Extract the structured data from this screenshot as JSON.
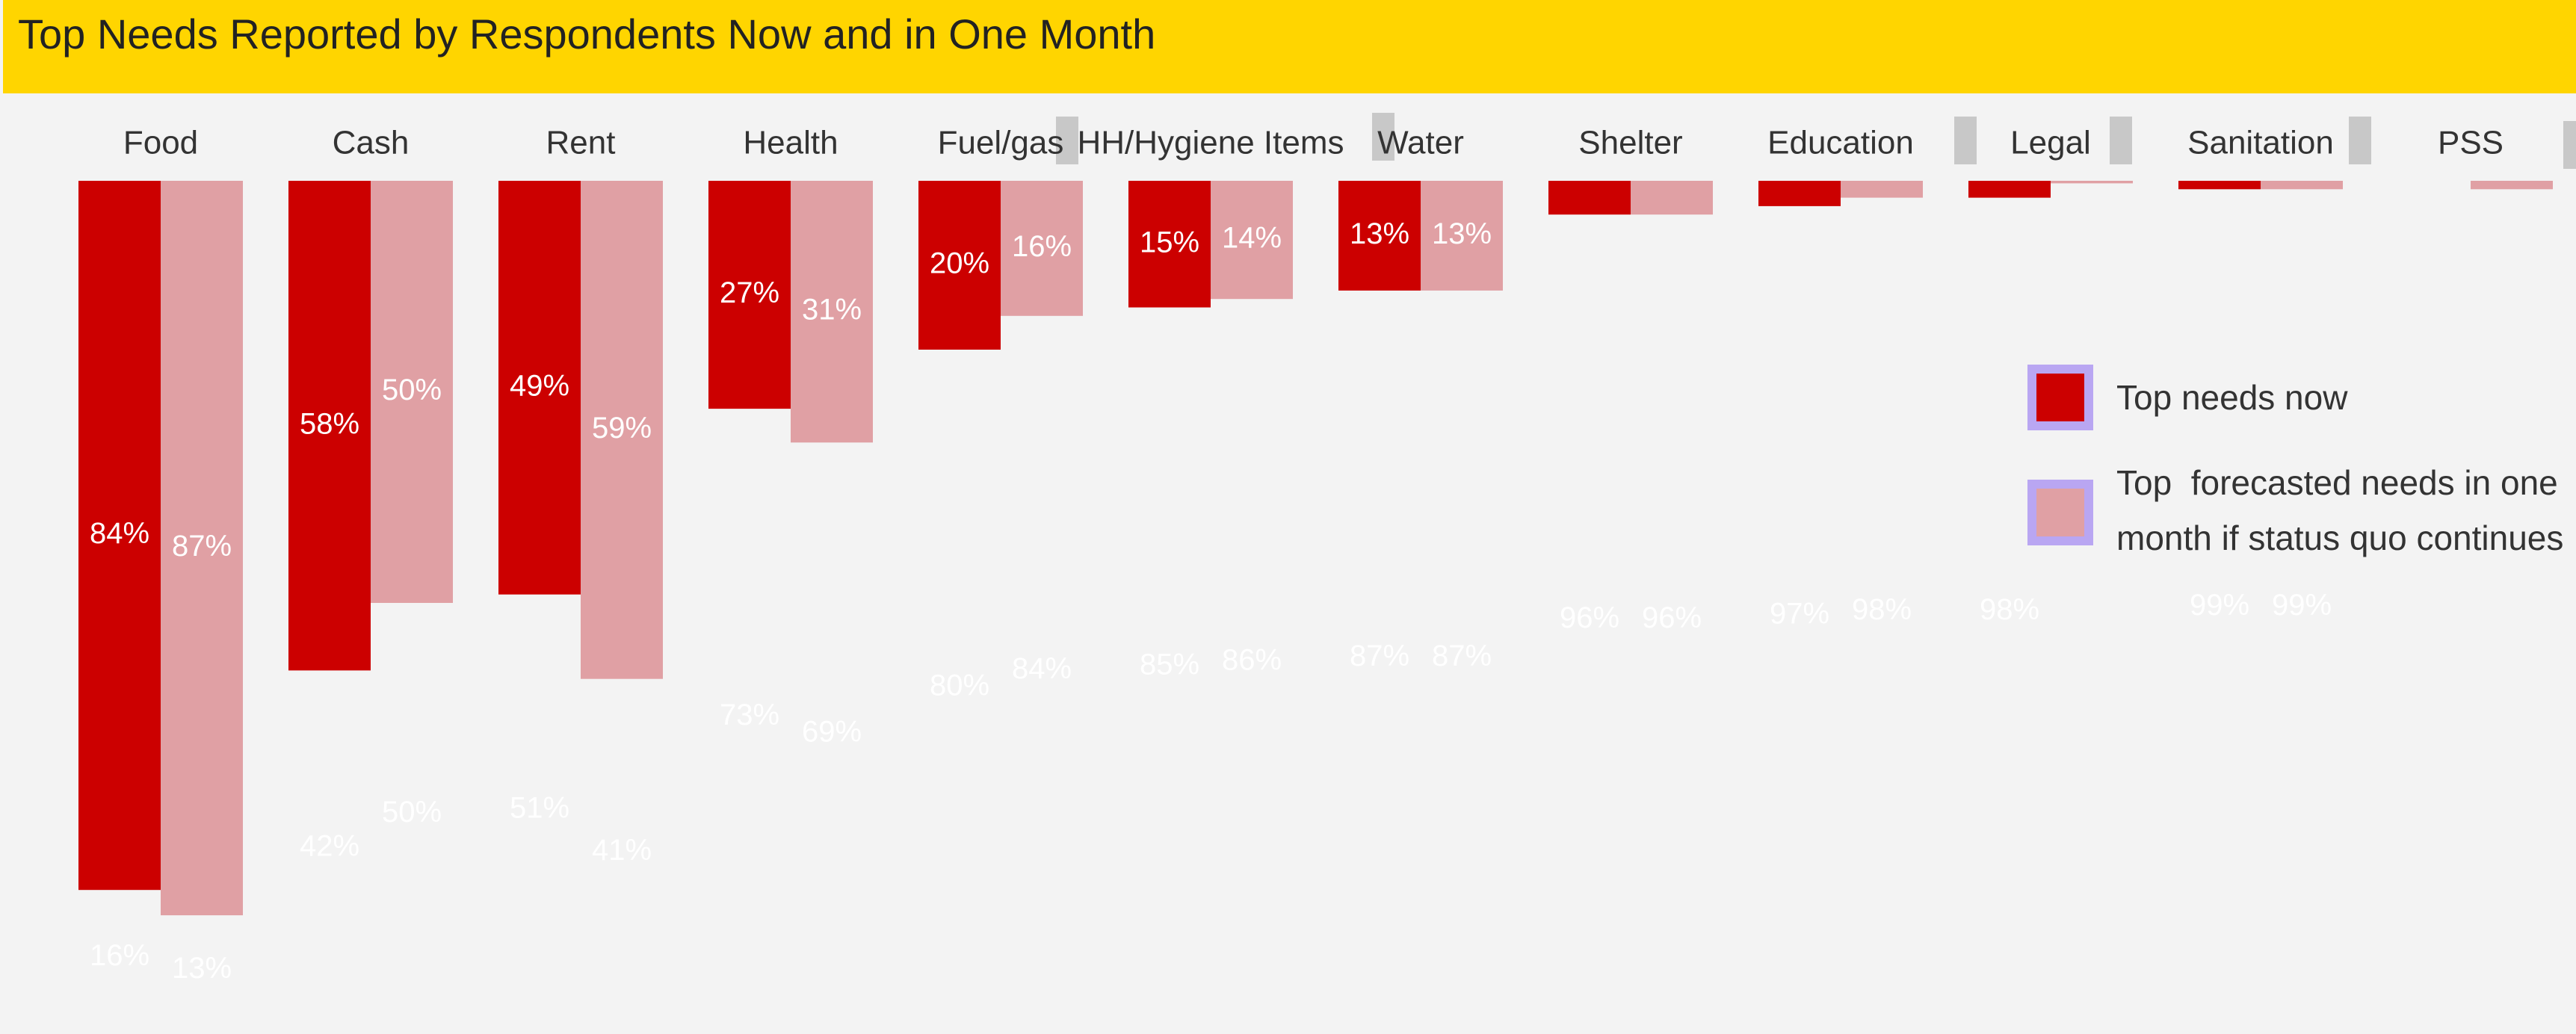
{
  "chart_data": {
    "type": "bar",
    "title": "Top Needs Reported by Respondents Now and in One Month",
    "categories": [
      "Food",
      "Cash",
      "Rent",
      "Health",
      "Fuel/gas",
      "HH/Hygiene Items",
      "Water",
      "Shelter",
      "Education",
      "Legal",
      "Sanitation",
      "PSS"
    ],
    "ylim": [
      0,
      100
    ],
    "series": [
      {
        "name": "Top needs now",
        "color": "#cc0000",
        "values": [
          84,
          58,
          49,
          27,
          20,
          15,
          13,
          4,
          3,
          2,
          1,
          null
        ],
        "value_labels": [
          "84%",
          "58%",
          "49%",
          "27%",
          "20%",
          "15%",
          "13%",
          null,
          null,
          null,
          null,
          null
        ],
        "rest_values": [
          16,
          42,
          51,
          73,
          80,
          85,
          87,
          96,
          97,
          98,
          99,
          null
        ],
        "rest_labels": [
          "16%",
          "42%",
          "51%",
          "73%",
          "80%",
          "85%",
          "87%",
          "96%",
          "97%",
          "98%",
          "99%",
          null
        ]
      },
      {
        "name": "Top  forecasted needs in one month if status quo continues",
        "color": "#e0a0a4",
        "values": [
          87,
          50,
          59,
          31,
          16,
          14,
          13,
          4,
          2,
          0.3,
          1,
          1
        ],
        "value_labels": [
          "87%",
          "50%",
          "59%",
          "31%",
          "16%",
          "14%",
          "13%",
          null,
          null,
          null,
          null,
          null
        ],
        "rest_values": [
          13,
          50,
          41,
          69,
          84,
          86,
          87,
          96,
          98,
          null,
          99,
          null
        ],
        "rest_labels": [
          "13%",
          "50%",
          "41%",
          "69%",
          "84%",
          "86%",
          "87%",
          "96%",
          "98%",
          null,
          "99%",
          null
        ]
      }
    ]
  }
}
